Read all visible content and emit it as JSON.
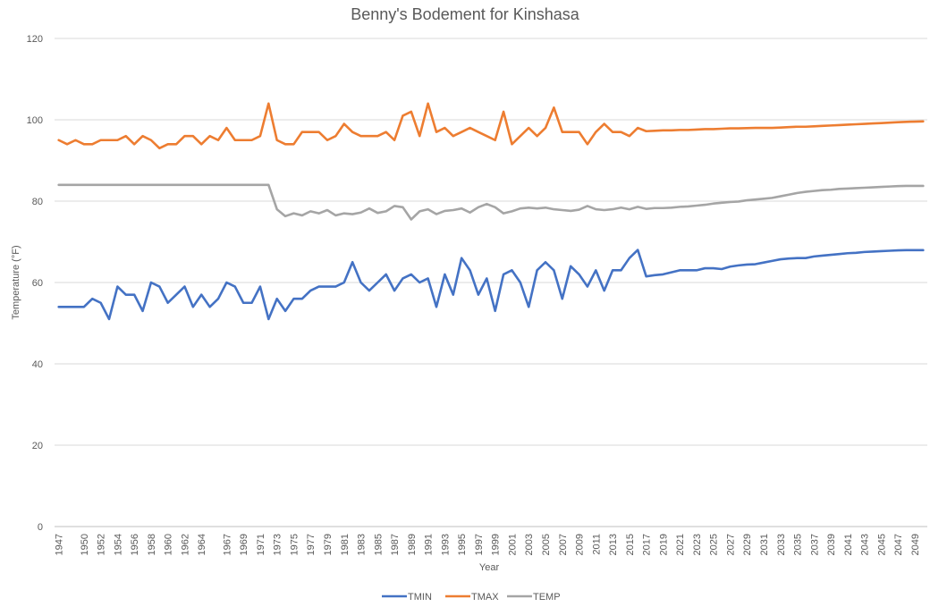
{
  "chart_data": {
    "type": "line",
    "title": "Benny's Bodement for Kinshasa",
    "xlabel": "Year",
    "ylabel": "Temperature (°F)",
    "ylim": [
      0,
      120
    ],
    "yticks": [
      0,
      20,
      40,
      60,
      80,
      100,
      120
    ],
    "grid": true,
    "legend_position": "bottom",
    "x_start": 1947,
    "x_end": 2050,
    "x_tick_labels": [
      "1947",
      "1950",
      "1952",
      "1954",
      "1956",
      "1958",
      "1960",
      "1962",
      "1964",
      "1967",
      "1969",
      "1971",
      "1973",
      "1975",
      "1977",
      "1979",
      "1981",
      "1983",
      "1985",
      "1987",
      "1989",
      "1991",
      "1993",
      "1995",
      "1997",
      "1999",
      "2001",
      "2003",
      "2005",
      "2007",
      "2009",
      "2011",
      "2013",
      "2015",
      "2017",
      "2019",
      "2021",
      "2023",
      "2025",
      "2027",
      "2029",
      "2031",
      "2033",
      "2035",
      "2037",
      "2039",
      "2041",
      "2043",
      "2045",
      "2047",
      "2049"
    ],
    "series": [
      {
        "name": "TMIN",
        "color": "#4472c4",
        "values": [
          54,
          54,
          54,
          54,
          56,
          55,
          51,
          59,
          57,
          57,
          53,
          60,
          59,
          55,
          57,
          59,
          54,
          57,
          54,
          56,
          60,
          59,
          55,
          55,
          59,
          51,
          56,
          53,
          56,
          56,
          58,
          59,
          59,
          59,
          60,
          65,
          60,
          58,
          60,
          62,
          58,
          61,
          62,
          60,
          61,
          54,
          62,
          57,
          66,
          63,
          57,
          61,
          53,
          62,
          63,
          60,
          54,
          63,
          65,
          63,
          56,
          64,
          62,
          59,
          63,
          58,
          63,
          63,
          66,
          68,
          61.5,
          61.8,
          62,
          62.5,
          63,
          63,
          63,
          63.5,
          63.5,
          63.3,
          63.9,
          64.2,
          64.4,
          64.5,
          64.9,
          65.3,
          65.7,
          65.9,
          66,
          66,
          66.4,
          66.6,
          66.8,
          67,
          67.2,
          67.3,
          67.5,
          67.6,
          67.7,
          67.8,
          67.9,
          67.95,
          67.95,
          67.95
        ]
      },
      {
        "name": "TMAX",
        "color": "#ed7d31",
        "values": [
          95,
          94,
          95,
          94,
          94,
          95,
          95,
          95,
          96,
          94,
          96,
          95,
          93,
          94,
          94,
          96,
          96,
          94,
          96,
          95,
          98,
          95,
          95,
          95,
          96,
          104,
          95,
          94,
          94,
          97,
          97,
          97,
          95,
          96,
          99,
          97,
          96,
          96,
          96,
          97,
          95,
          101,
          102,
          96,
          104,
          97,
          98,
          96,
          97,
          98,
          97,
          96,
          95,
          102,
          94,
          96,
          98,
          96,
          98,
          103,
          97,
          97,
          97,
          94,
          97,
          99,
          97,
          97,
          96,
          98,
          97.2,
          97.3,
          97.4,
          97.4,
          97.5,
          97.5,
          97.6,
          97.7,
          97.7,
          97.8,
          97.9,
          97.9,
          97.95,
          98,
          98,
          98,
          98.1,
          98.2,
          98.3,
          98.3,
          98.4,
          98.5,
          98.6,
          98.7,
          98.8,
          98.9,
          99,
          99.1,
          99.2,
          99.3,
          99.4,
          99.5,
          99.55,
          99.6
        ]
      },
      {
        "name": "TEMP",
        "color": "#a5a5a5",
        "values": [
          84,
          84,
          84,
          84,
          84,
          84,
          84,
          84,
          84,
          84,
          84,
          84,
          84,
          84,
          84,
          84,
          84,
          84,
          84,
          84,
          84,
          84,
          84,
          84,
          84,
          84,
          78,
          76.3,
          77,
          76.5,
          77.5,
          77,
          77.8,
          76.5,
          77,
          76.8,
          77.2,
          78.2,
          77.1,
          77.5,
          78.8,
          78.5,
          75.5,
          77.5,
          78,
          76.8,
          77.6,
          77.8,
          78.2,
          77.2,
          78.5,
          79.3,
          78.5,
          77,
          77.5,
          78.2,
          78.4,
          78.2,
          78.4,
          78,
          77.8,
          77.6,
          77.9,
          78.8,
          78,
          77.8,
          78,
          78.4,
          78,
          78.6,
          78.1,
          78.3,
          78.3,
          78.4,
          78.6,
          78.7,
          78.9,
          79.1,
          79.4,
          79.6,
          79.8,
          79.9,
          80.2,
          80.4,
          80.6,
          80.8,
          81.2,
          81.6,
          82,
          82.3,
          82.5,
          82.7,
          82.8,
          83,
          83.1,
          83.2,
          83.3,
          83.4,
          83.5,
          83.6,
          83.7,
          83.75,
          83.75,
          83.75
        ]
      }
    ]
  }
}
